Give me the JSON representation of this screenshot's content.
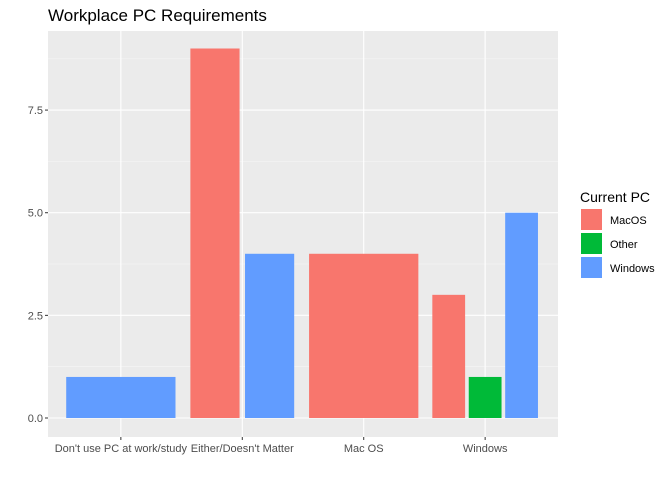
{
  "chart_data": {
    "type": "bar",
    "title": "Workplace PC Requirements",
    "xlabel": "",
    "ylabel": "",
    "categories": [
      "Don't use PC at work/study",
      "Either/Doesn't Matter",
      "Mac OS",
      "Windows"
    ],
    "ylim": [
      0,
      9.45
    ],
    "yticks": [
      0.0,
      2.5,
      5.0,
      7.5
    ],
    "ytick_labels": [
      "0.0",
      "2.5",
      "5.0",
      "7.5"
    ],
    "grid": true,
    "legend": {
      "title": "Current PC",
      "position": "right",
      "items": [
        {
          "label": "MacOS",
          "color": "#F8766D"
        },
        {
          "label": "Other",
          "color": "#00BA38"
        },
        {
          "label": "Windows",
          "color": "#619CFF"
        }
      ]
    },
    "groups": [
      {
        "category": "Don't use PC at work/study",
        "bars": [
          {
            "series": "Windows",
            "value": 1
          }
        ]
      },
      {
        "category": "Either/Doesn't Matter",
        "bars": [
          {
            "series": "MacOS",
            "value": 9
          },
          {
            "series": "Windows",
            "value": 4
          }
        ]
      },
      {
        "category": "Mac OS",
        "bars": [
          {
            "series": "MacOS",
            "value": 4
          }
        ]
      },
      {
        "category": "Windows",
        "bars": [
          {
            "series": "MacOS",
            "value": 3
          },
          {
            "series": "Other",
            "value": 1
          },
          {
            "series": "Windows",
            "value": 5
          }
        ]
      }
    ],
    "colors": {
      "panel": "#EBEBEB",
      "grid_major": "#FFFFFF",
      "grid_minor": "#F5F5F5"
    }
  }
}
